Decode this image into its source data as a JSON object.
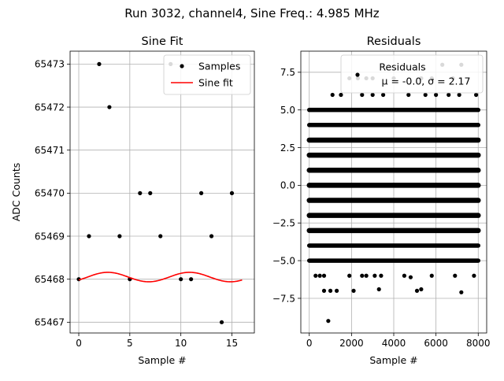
{
  "figure": {
    "suptitle": "Run 3032, channel4, Sine Freq.: 4.985 MHz"
  },
  "chart_data": [
    {
      "type": "scatter",
      "title": "Sine Fit",
      "xlabel": "Sample #",
      "ylabel": "ADC Counts",
      "xlim": [
        -0.85,
        17.2
      ],
      "ylim": [
        65466.75,
        65473.3
      ],
      "xticks": [
        0,
        5,
        10,
        15
      ],
      "yticks": [
        65467,
        65468,
        65469,
        65470,
        65471,
        65472,
        65473
      ],
      "grid": true,
      "legend_placement": "top-right",
      "series": [
        {
          "name": "Samples",
          "kind": "points",
          "color": "#000000",
          "x": [
            0,
            1,
            2,
            3,
            4,
            5,
            6,
            7,
            8,
            9,
            10,
            11,
            12,
            13,
            14,
            15
          ],
          "y": [
            65468,
            65469,
            65473,
            65472,
            65469,
            65468,
            65470,
            65470,
            65469,
            65473,
            65468,
            65468,
            65470,
            65469,
            65467,
            65470
          ]
        },
        {
          "name": "Sine fit",
          "kind": "line",
          "color": "#ff0000",
          "x_range": [
            0,
            16
          ],
          "offset": 65468.05,
          "amplitude": 0.11,
          "period": 8,
          "phase": 0.9
        }
      ]
    },
    {
      "type": "scatter",
      "title": "Residuals",
      "xlabel": "Sample #",
      "ylabel": "",
      "xlim": [
        -400,
        8400
      ],
      "ylim": [
        -9.8,
        8.9
      ],
      "xticks": [
        0,
        2000,
        4000,
        6000,
        8000
      ],
      "yticks": [
        -7.5,
        -5.0,
        -2.5,
        0.0,
        2.5,
        5.0,
        7.5
      ],
      "ytick_labels": [
        "−7.5",
        "−5.0",
        "−2.5",
        "0.0",
        "2.5",
        "5.0",
        "7.5"
      ],
      "grid": true,
      "legend_placement": "top-right",
      "legend": {
        "series_name": "Residuals",
        "stats_text": "μ = -0.0, σ = 2.17"
      },
      "series": [
        {
          "name": "Residuals",
          "kind": "points",
          "color": "#000000",
          "x_range": [
            0,
            8000
          ],
          "dense_levels": [
            -5,
            -4,
            -3,
            -2,
            -1,
            0,
            1,
            2,
            3,
            4,
            5
          ],
          "sparse_points": [
            [
              900,
              -9
            ],
            [
              700,
              -7
            ],
            [
              1000,
              -7
            ],
            [
              1300,
              -7
            ],
            [
              2100,
              -7
            ],
            [
              3300,
              -6.9
            ],
            [
              5100,
              -7
            ],
            [
              5300,
              -6.9
            ],
            [
              7200,
              -7.1
            ],
            [
              300,
              -6
            ],
            [
              500,
              -6
            ],
            [
              700,
              -6
            ],
            [
              1900,
              -6
            ],
            [
              2500,
              -6
            ],
            [
              2700,
              -6
            ],
            [
              3100,
              -6
            ],
            [
              3400,
              -6
            ],
            [
              4800,
              -6.1
            ],
            [
              5800,
              -6
            ],
            [
              6900,
              -6
            ],
            [
              7800,
              -6
            ],
            [
              4500,
              -6
            ],
            [
              1100,
              6
            ],
            [
              1500,
              6
            ],
            [
              2500,
              6
            ],
            [
              3500,
              6
            ],
            [
              4700,
              6
            ],
            [
              5500,
              6
            ],
            [
              6600,
              6
            ],
            [
              7100,
              6
            ],
            [
              7900,
              6
            ],
            [
              3000,
              6
            ],
            [
              6000,
              6
            ],
            [
              1900,
              7.1
            ],
            [
              2300,
              7.1
            ],
            [
              2700,
              7.1
            ],
            [
              3000,
              7.1
            ],
            [
              4000,
              7.1
            ],
            [
              5300,
              7.1
            ],
            [
              5800,
              7.1
            ],
            [
              6800,
              7.1
            ],
            [
              6300,
              8
            ],
            [
              7200,
              8
            ]
          ]
        }
      ]
    }
  ]
}
